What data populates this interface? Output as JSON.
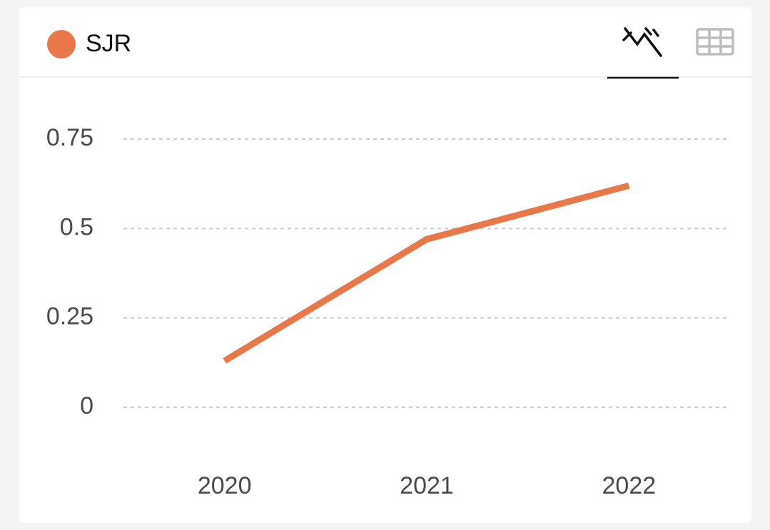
{
  "chart_data": {
    "type": "line",
    "categories": [
      "2020",
      "2021",
      "2022"
    ],
    "series": [
      {
        "name": "SJR",
        "color": "#e8784a",
        "values": [
          0.13,
          0.47,
          0.62
        ]
      }
    ],
    "ylim": [
      0,
      0.75
    ],
    "yticks": [
      0,
      0.25,
      0.5,
      0.75
    ],
    "grid": true
  }
}
